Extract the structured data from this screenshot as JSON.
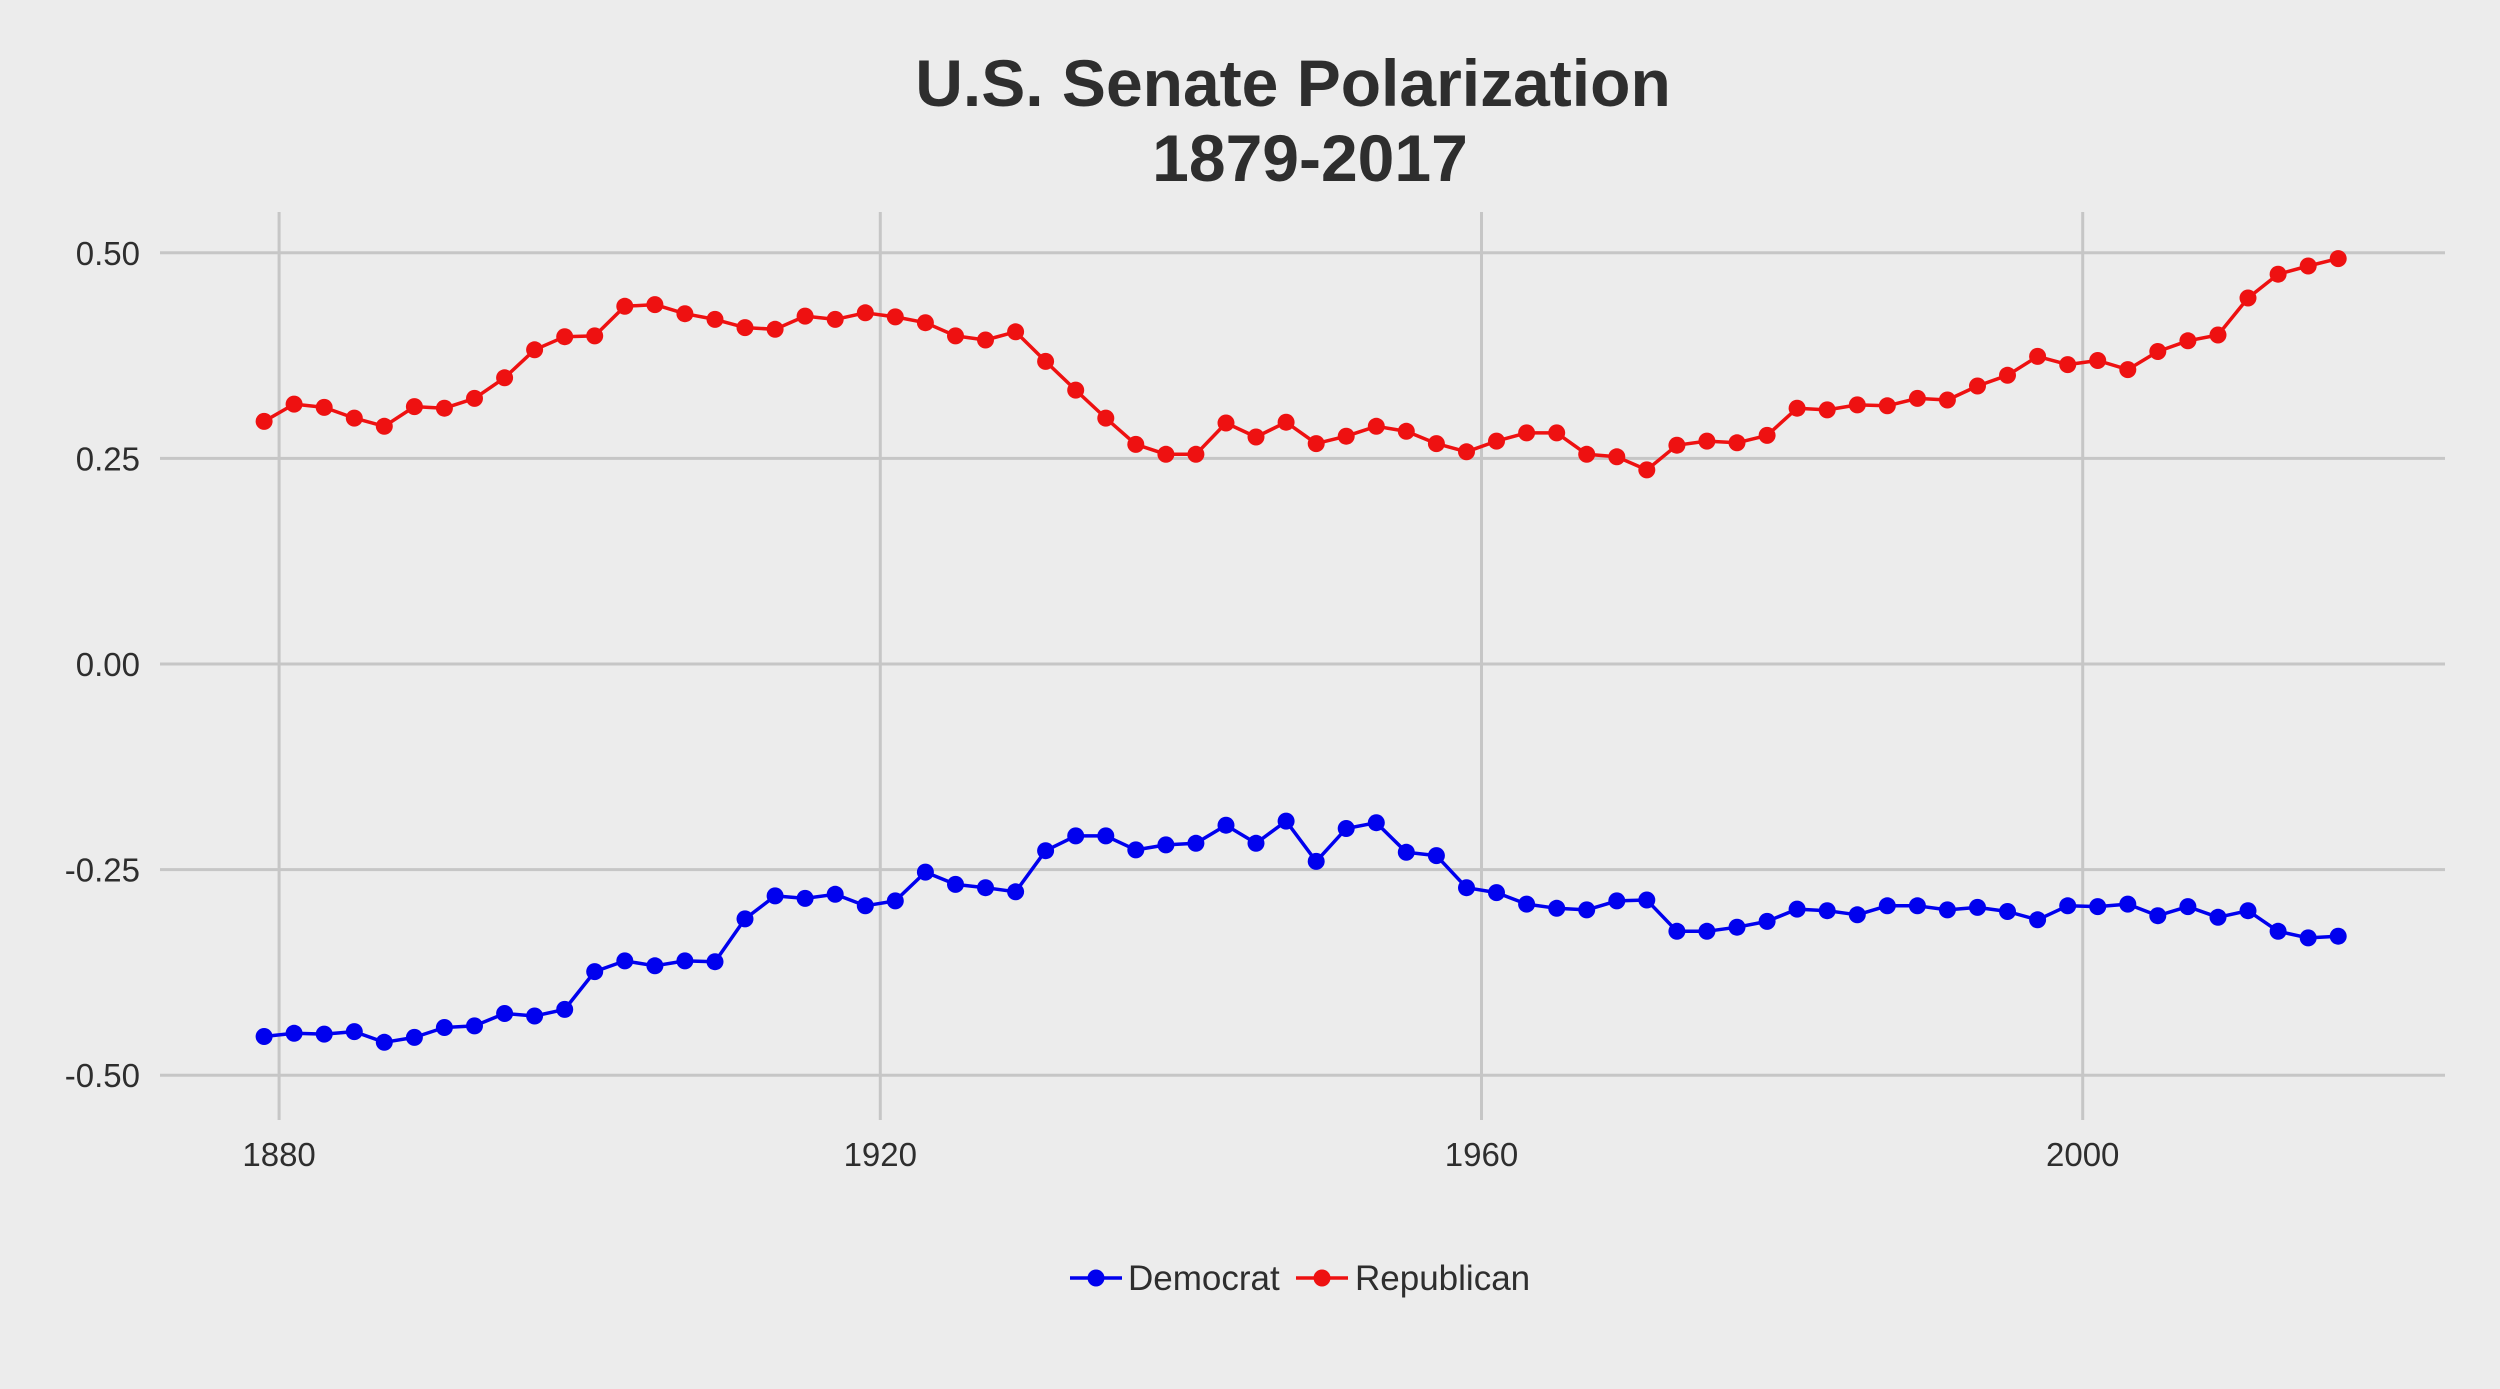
{
  "chart_data": {
    "type": "line",
    "title": [
      "U.S. Senate Polarization",
      "1879-2017"
    ],
    "xlabel": "",
    "ylabel": "",
    "xlim": [
      1872,
      2022
    ],
    "ylim": [
      -0.55,
      0.55
    ],
    "x_ticks": [
      1880,
      1920,
      1960,
      2000
    ],
    "y_ticks": [
      -0.5,
      -0.25,
      0.0,
      0.25,
      0.5
    ],
    "y_tick_labels": [
      "-0.50",
      "-0.25",
      "0.00",
      "0.25",
      "0.50"
    ],
    "grid": true,
    "legend_position": "bottom",
    "x": [
      1879,
      1881,
      1883,
      1885,
      1887,
      1889,
      1891,
      1893,
      1895,
      1897,
      1899,
      1901,
      1903,
      1905,
      1907,
      1909,
      1911,
      1913,
      1915,
      1917,
      1919,
      1921,
      1923,
      1925,
      1927,
      1929,
      1931,
      1933,
      1935,
      1937,
      1939,
      1941,
      1943,
      1945,
      1947,
      1949,
      1951,
      1953,
      1955,
      1957,
      1959,
      1961,
      1963,
      1965,
      1967,
      1969,
      1971,
      1973,
      1975,
      1977,
      1979,
      1981,
      1983,
      1985,
      1987,
      1989,
      1991,
      1993,
      1995,
      1997,
      1999,
      2001,
      2003,
      2005,
      2007,
      2009,
      2011,
      2013,
      2015,
      2017
    ],
    "series": [
      {
        "name": "Democrat",
        "color": "#0000ee",
        "values": [
          -0.453,
          -0.449,
          -0.45,
          -0.447,
          -0.46,
          -0.454,
          -0.442,
          -0.44,
          -0.425,
          -0.428,
          -0.42,
          -0.374,
          -0.361,
          -0.367,
          -0.361,
          -0.362,
          -0.31,
          -0.282,
          -0.285,
          -0.28,
          -0.294,
          -0.288,
          -0.253,
          -0.268,
          -0.272,
          -0.277,
          -0.227,
          -0.209,
          -0.209,
          -0.226,
          -0.22,
          -0.218,
          -0.196,
          -0.218,
          -0.191,
          -0.24,
          -0.2,
          -0.193,
          -0.229,
          -0.233,
          -0.272,
          -0.278,
          -0.292,
          -0.297,
          -0.299,
          -0.288,
          -0.287,
          -0.325,
          -0.325,
          -0.32,
          -0.313,
          -0.298,
          -0.3,
          -0.305,
          -0.294,
          -0.294,
          -0.299,
          -0.296,
          -0.301,
          -0.311,
          -0.294,
          -0.295,
          -0.292,
          -0.306,
          -0.295,
          -0.308,
          -0.3,
          -0.325,
          -0.333,
          -0.331
        ]
      },
      {
        "name": "Republican",
        "color": "#ee1111",
        "values": [
          0.295,
          0.316,
          0.312,
          0.299,
          0.289,
          0.313,
          0.311,
          0.323,
          0.348,
          0.382,
          0.398,
          0.399,
          0.435,
          0.437,
          0.426,
          0.419,
          0.409,
          0.407,
          0.423,
          0.419,
          0.427,
          0.422,
          0.415,
          0.399,
          0.394,
          0.404,
          0.368,
          0.333,
          0.299,
          0.267,
          0.255,
          0.255,
          0.293,
          0.276,
          0.294,
          0.268,
          0.277,
          0.289,
          0.283,
          0.268,
          0.258,
          0.271,
          0.281,
          0.281,
          0.255,
          0.252,
          0.236,
          0.266,
          0.271,
          0.269,
          0.278,
          0.311,
          0.309,
          0.315,
          0.314,
          0.323,
          0.321,
          0.338,
          0.351,
          0.374,
          0.364,
          0.369,
          0.358,
          0.38,
          0.393,
          0.4,
          0.445,
          0.474,
          0.484,
          0.493
        ]
      }
    ]
  }
}
